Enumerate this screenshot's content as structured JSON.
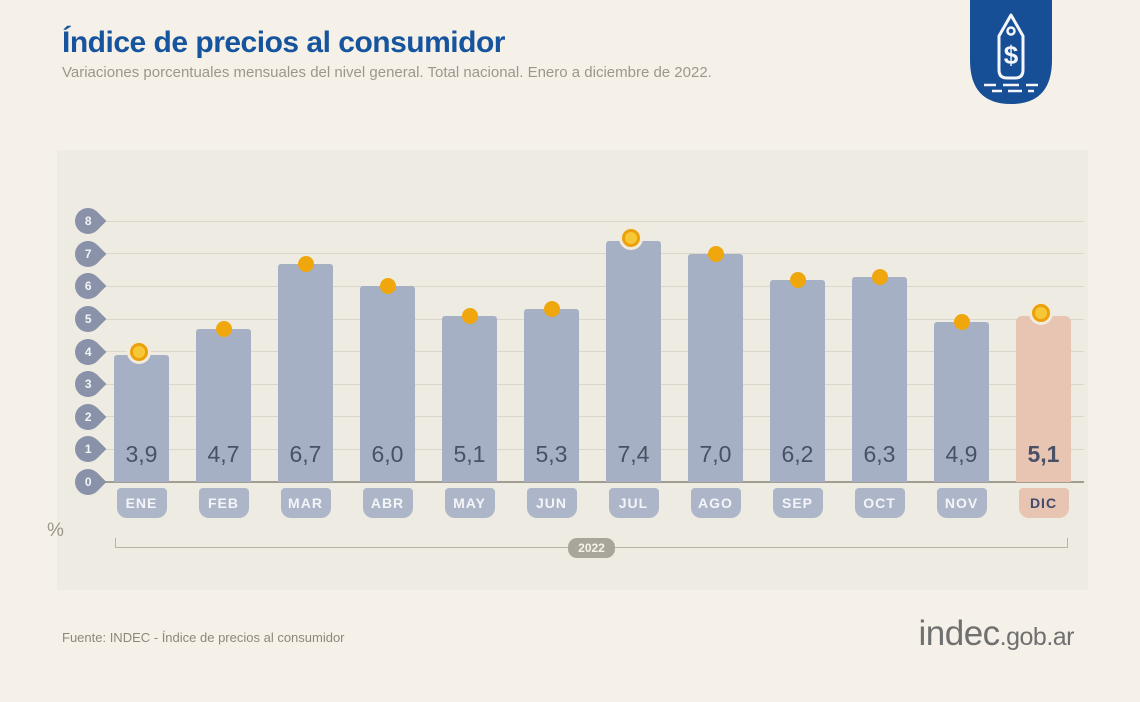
{
  "page": {
    "title": "Índice de precios al consumidor",
    "subtitle": "Variaciones porcentuales mensuales del nivel general. Total nacional. Enero a diciembre de 2022.",
    "source": "Fuente: INDEC - Índice de precios al consumidor",
    "logo": {
      "main": "indec",
      "suffix": ".gob.ar"
    },
    "badge_icon": "price-tag-icon",
    "badge_symbol": "$"
  },
  "colors": {
    "title_blue": "#17549e",
    "badge_blue": "#174f96",
    "bar_gray_blue": "#a6b0c4",
    "bar_highlight_salmon": "#e7c5b2",
    "dot_orange": "#efa70d",
    "pin_gray": "#8a92a9",
    "background_beige": "#f5f1e9",
    "panel_beige": "#eeebe2"
  },
  "chart_data": {
    "type": "bar",
    "title": "Índice de precios al consumidor",
    "subtitle": "Variaciones porcentuales mensuales del nivel general. Total nacional. Enero a diciembre de 2022.",
    "categories": [
      "ENE",
      "FEB",
      "MAR",
      "ABR",
      "MAY",
      "JUN",
      "JUL",
      "AGO",
      "SEP",
      "OCT",
      "NOV",
      "DIC"
    ],
    "values": [
      3.9,
      4.7,
      6.7,
      6.0,
      5.1,
      5.3,
      7.4,
      7.0,
      6.2,
      6.3,
      4.9,
      5.1
    ],
    "value_labels": [
      "3,9",
      "4,7",
      "6,7",
      "6,0",
      "5,1",
      "5,3",
      "7,4",
      "7,0",
      "6,2",
      "6,3",
      "4,9",
      "5,1"
    ],
    "highlighted_category": "DIC",
    "ringed_dot_categories": [
      "ENE",
      "JUL",
      "DIC"
    ],
    "y_ticks": [
      0,
      1,
      2,
      3,
      4,
      5,
      6,
      7,
      8
    ],
    "ylim": [
      0,
      8
    ],
    "ylabel": "%",
    "unit_label": "%",
    "axis_group_label": "2022",
    "grid": true,
    "legend": "none"
  }
}
